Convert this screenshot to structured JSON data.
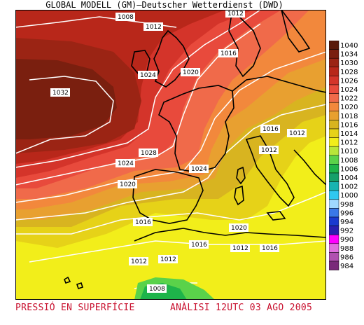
{
  "header": {
    "title": "GLOBAL MODELL (GM)—Deutscher Wetterdienst (DWD)"
  },
  "footer": {
    "left": "PRESSIÓ EN SUPERFÍCIE",
    "right": "ANÀLISI 12UTC 03 AGO 2005"
  },
  "legend": {
    "levels": [
      {
        "value": "1040",
        "color": "#5a1a0a"
      },
      {
        "value": "1034",
        "color": "#7a1f0f"
      },
      {
        "value": "1030",
        "color": "#9b2414"
      },
      {
        "value": "1028",
        "color": "#b8271a"
      },
      {
        "value": "1026",
        "color": "#d4342a"
      },
      {
        "value": "1024",
        "color": "#e84a3c"
      },
      {
        "value": "1022",
        "color": "#f06a4a"
      },
      {
        "value": "1020",
        "color": "#f2883c"
      },
      {
        "value": "1018",
        "color": "#e8a030"
      },
      {
        "value": "1016",
        "color": "#d8b420"
      },
      {
        "value": "1014",
        "color": "#e6d218"
      },
      {
        "value": "1012",
        "color": "#f2ee1a"
      },
      {
        "value": "1010",
        "color": "#b8e63a"
      },
      {
        "value": "1008",
        "color": "#5ad24a"
      },
      {
        "value": "1006",
        "color": "#1eb44a"
      },
      {
        "value": "1004",
        "color": "#16a06a"
      },
      {
        "value": "1002",
        "color": "#18b4b0"
      },
      {
        "value": "1000",
        "color": "#30c8f0"
      },
      {
        "value": "998",
        "color": "#a0d8ff"
      },
      {
        "value": "996",
        "color": "#3a78e8"
      },
      {
        "value": "994",
        "color": "#1a3ad0"
      },
      {
        "value": "992",
        "color": "#2a20b0"
      },
      {
        "value": "990",
        "color": "#ff00ff"
      },
      {
        "value": "988",
        "color": "#e070e0"
      },
      {
        "value": "986",
        "color": "#b050b0"
      },
      {
        "value": "984",
        "color": "#7a2a7a"
      }
    ]
  },
  "map": {
    "isobar_labels": [
      "1008",
      "1012",
      "1012",
      "1016",
      "1024",
      "1020",
      "1032",
      "1016",
      "1012",
      "1012",
      "1028",
      "1024",
      "1024",
      "1020",
      "1016",
      "1020",
      "1016",
      "1012",
      "1016",
      "1012",
      "1012",
      "1008"
    ]
  }
}
